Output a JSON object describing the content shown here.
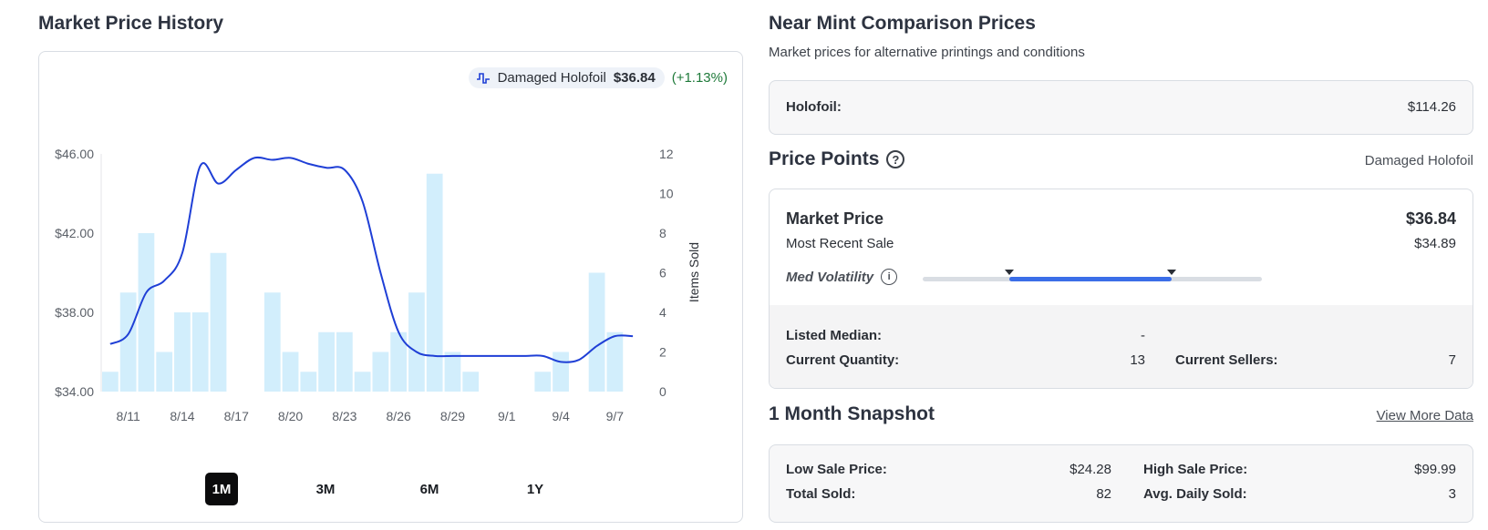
{
  "left": {
    "title": "Market Price History",
    "legend": {
      "label": "Damaged Holofoil",
      "price": "$36.84",
      "change": "(+1.13%)"
    },
    "ranges": [
      "1M",
      "3M",
      "6M",
      "1Y"
    ],
    "active_range": "1M"
  },
  "chart_data": {
    "type": "line+bar",
    "x_labels": [
      "8/11",
      "8/14",
      "8/17",
      "8/20",
      "8/23",
      "8/26",
      "8/29",
      "9/1",
      "9/4",
      "9/7"
    ],
    "days": [
      "8/10",
      "8/11",
      "8/12",
      "8/13",
      "8/14",
      "8/15",
      "8/16",
      "8/17",
      "8/18",
      "8/19",
      "8/20",
      "8/21",
      "8/22",
      "8/23",
      "8/24",
      "8/25",
      "8/26",
      "8/27",
      "8/28",
      "8/29",
      "8/30",
      "8/31",
      "9/1",
      "9/2",
      "9/3",
      "9/4",
      "9/5",
      "9/6",
      "9/7",
      "9/8"
    ],
    "price_series": {
      "name": "Damaged Holofoil",
      "values": [
        36.4,
        36.9,
        39.0,
        39.6,
        41.0,
        45.4,
        44.5,
        45.2,
        45.8,
        45.7,
        45.8,
        45.5,
        45.3,
        45.2,
        43.6,
        40.0,
        37.0,
        36.0,
        35.8,
        35.8,
        35.8,
        35.8,
        35.8,
        35.8,
        35.8,
        35.5,
        35.6,
        36.3,
        36.8,
        36.8
      ]
    },
    "items_sold": {
      "name": "Items Sold",
      "values": [
        1,
        5,
        8,
        2,
        4,
        4,
        7,
        0,
        0,
        5,
        2,
        1,
        3,
        3,
        1,
        2,
        3,
        5,
        11,
        2,
        1,
        0,
        0,
        0,
        1,
        2,
        0,
        6,
        3,
        0
      ]
    },
    "y_left": {
      "ticks": [
        "$46.00",
        "$42.00",
        "$38.00",
        "$34.00"
      ],
      "range": [
        34,
        46
      ]
    },
    "y_right": {
      "label": "Items Sold",
      "ticks": [
        "12",
        "10",
        "8",
        "6",
        "4",
        "2",
        "0"
      ],
      "range": [
        0,
        12
      ]
    },
    "colors": {
      "line": "#1f3fd6",
      "bar": "#d2eefc"
    }
  },
  "near_mint": {
    "title": "Near Mint Comparison Prices",
    "subtitle": "Market prices for alternative printings and conditions",
    "holofoil_label": "Holofoil:",
    "holofoil_value": "$114.26"
  },
  "price_points": {
    "title": "Price Points",
    "variant": "Damaged Holofoil",
    "market_price_label": "Market Price",
    "market_price_value": "$36.84",
    "recent_sale_label": "Most Recent Sale",
    "recent_sale_value": "$34.89",
    "volatility_label": "Med Volatility",
    "volatility_level": 0.5,
    "listed_median_label": "Listed Median:",
    "listed_median_value": "-",
    "current_quantity_label": "Current Quantity:",
    "current_quantity_value": "13",
    "current_sellers_label": "Current Sellers:",
    "current_sellers_value": "7"
  },
  "snapshot": {
    "title": "1 Month Snapshot",
    "link": "View More Data",
    "low_label": "Low Sale Price:",
    "low_value": "$24.28",
    "high_label": "High Sale Price:",
    "high_value": "$99.99",
    "total_label": "Total Sold:",
    "total_value": "82",
    "avg_label": "Avg. Daily Sold:",
    "avg_value": "3"
  }
}
